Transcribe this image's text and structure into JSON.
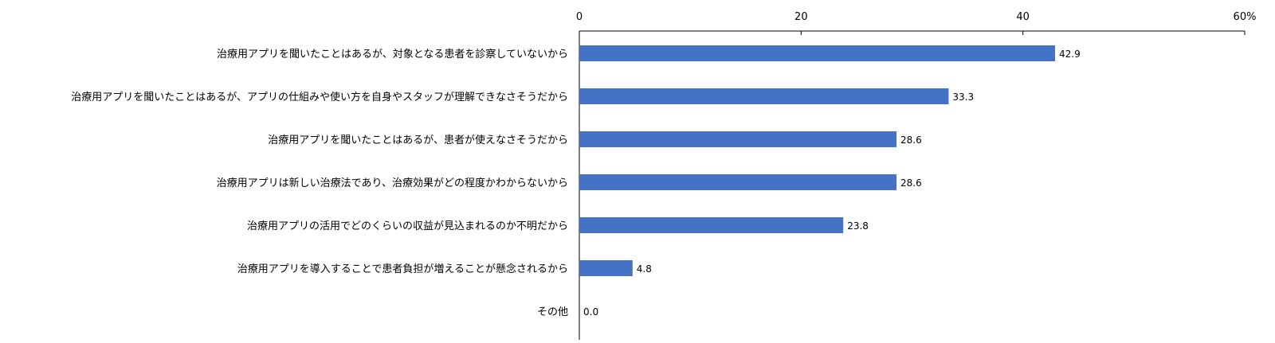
{
  "chart_data": {
    "type": "bar",
    "orientation": "horizontal",
    "categories": [
      "治療用アプリを聞いたことはあるが、対象となる患者を診察していないから",
      "治療用アプリを聞いたことはあるが、アプリの仕組みや使い方を自身やスタッフが理解できなさそうだから",
      "治療用アプリを聞いたことはあるが、患者が使えなさそうだから",
      "治療用アプリは新しい治療法であり、治療効果がどの程度かわからないから",
      "治療用アプリの活用でどのくらいの収益が見込まれるのか不明だから",
      "治療用アプリを導入することで患者負担が増えることが懸念されるから",
      "その他"
    ],
    "values": [
      42.9,
      33.3,
      28.6,
      28.6,
      23.8,
      4.8,
      0.0
    ],
    "data_labels": [
      "42.9",
      "33.3",
      "28.6",
      "28.6",
      "23.8",
      "4.8",
      "0.0"
    ],
    "xlim": [
      0,
      60
    ],
    "x_ticks": [
      0,
      20,
      40,
      60
    ],
    "x_tick_labels": [
      "0",
      "20",
      "40",
      "60%"
    ],
    "axis_position": "top",
    "grid": false,
    "bar_color": "#4472C4",
    "text_color": "#000000",
    "axis_color": "#000000"
  }
}
